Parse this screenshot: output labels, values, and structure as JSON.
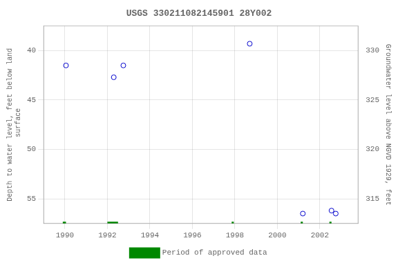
{
  "chart_data": {
    "type": "scatter",
    "title": "USGS 330211082145901 28Y002",
    "ylabel": "Depth to water level, feet below land\n surface",
    "y2label": "Groundwater level above NGVD 1929, feet",
    "xlim": [
      1989.0,
      2003.8
    ],
    "xticks": [
      1990,
      1992,
      1994,
      1996,
      1998,
      2000,
      2002
    ],
    "ylim": [
      57.5,
      37.5
    ],
    "yticks": [
      40,
      45,
      50,
      55
    ],
    "y2lim": [
      312.5,
      332.5
    ],
    "y2ticks": [
      315,
      320,
      325,
      330
    ],
    "grid": true,
    "legend": "bottom",
    "series": [
      {
        "type": "scatter",
        "color": "#0000cc",
        "marker": "circle",
        "x": [
          1990.05,
          1992.3,
          1992.75,
          1998.7,
          2001.2,
          2002.55,
          2002.75
        ],
        "values": [
          41.5,
          42.7,
          41.5,
          39.3,
          56.5,
          56.2,
          56.5
        ]
      },
      {
        "name": "Period of approved data",
        "type": "line",
        "color": "#008800",
        "line_style": "solid",
        "segments": [
          {
            "x1": 1989.9,
            "x2": 1990.05
          },
          {
            "x1": 1992.0,
            "x2": 1992.5
          },
          {
            "x1": 1997.85,
            "x2": 1997.95
          },
          {
            "x1": 2001.1,
            "x2": 2001.2
          },
          {
            "x1": 2002.45,
            "x2": 2002.55
          }
        ]
      }
    ]
  }
}
